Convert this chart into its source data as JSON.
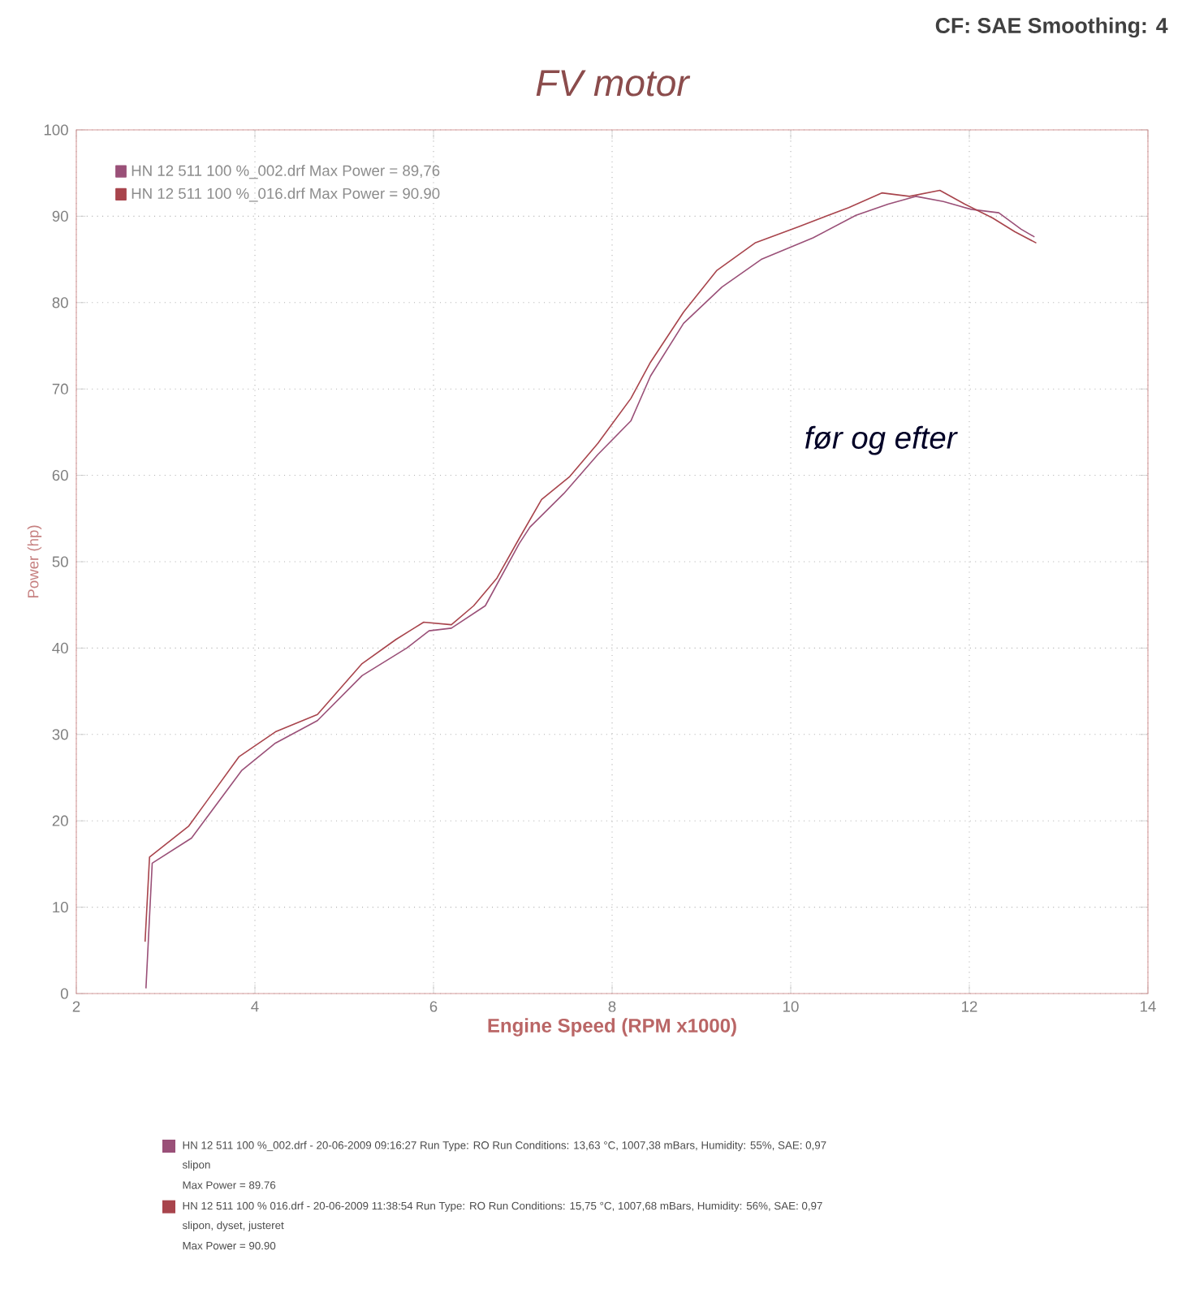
{
  "chart_data": {
    "type": "line",
    "title": "FV motor",
    "xlabel": "Engine Speed (RPM x1000)",
    "ylabel": "Power (hp)",
    "xlim": [
      2,
      14
    ],
    "ylim": [
      0,
      100
    ],
    "xticks": [
      2,
      4,
      6,
      8,
      10,
      12,
      14
    ],
    "yticks": [
      0,
      10,
      20,
      30,
      40,
      50,
      60,
      70,
      80,
      90,
      100
    ],
    "grid": true,
    "legend": "top left",
    "line_style": "solid",
    "marker": "none",
    "series": [
      {
        "name": "HN 12 511 100 %_002.drf Max Power = 89,76",
        "color": "#9a5078",
        "x": [
          2.78,
          2.85,
          3.29,
          3.85,
          4.23,
          4.7,
          5.2,
          5.7,
          5.95,
          6.2,
          6.58,
          6.96,
          7.08,
          7.46,
          7.84,
          8.21,
          8.43,
          8.8,
          9.23,
          9.67,
          10.25,
          10.73,
          11.09,
          11.4,
          11.71,
          12.02,
          12.33,
          12.58,
          12.73
        ],
        "values": [
          0.6,
          15.1,
          18.0,
          25.8,
          29.0,
          31.6,
          36.8,
          40.0,
          42.0,
          42.3,
          44.9,
          52.1,
          54.0,
          57.9,
          62.4,
          66.3,
          71.5,
          77.6,
          81.8,
          85.0,
          87.5,
          90.1,
          91.4,
          92.3,
          91.7,
          90.8,
          90.4,
          88.5,
          87.6
        ]
      },
      {
        "name": "HN 12 511 100 %_016.drf Max Power = 90.90",
        "color": "#a8444c",
        "x": [
          2.77,
          2.82,
          3.26,
          3.82,
          4.23,
          4.7,
          5.2,
          5.58,
          5.89,
          6.2,
          6.45,
          6.71,
          6.96,
          7.21,
          7.52,
          7.84,
          8.21,
          8.43,
          8.8,
          9.17,
          9.6,
          10.09,
          10.65,
          11.02,
          11.33,
          11.67,
          11.95,
          12.26,
          12.51,
          12.75
        ],
        "values": [
          6.0,
          15.8,
          19.4,
          27.4,
          30.3,
          32.3,
          38.2,
          41.0,
          43.0,
          42.7,
          44.9,
          48.1,
          52.7,
          57.2,
          59.8,
          63.7,
          68.9,
          73.1,
          78.9,
          83.7,
          86.9,
          88.8,
          91.0,
          92.7,
          92.3,
          93.0,
          91.4,
          89.8,
          88.2,
          86.9
        ]
      }
    ],
    "annotations": [
      "CF: SAE  Smoothing: 4",
      "før og efter",
      "HN 12 511 100 %_002.drf - 20-06-2009 09:16:27  Run Type: RO  Run Conditions: 13,63 °C, 1007,38 mBars,  Humidity: 55%, SAE: 0,97",
      "slipon",
      "Max Power = 89.76",
      "HN 12 511 100 % 016.drf - 20-06-2009 11:38:54  Run Type: RO  Run Conditions: 15,75 °C, 1007,68 mBars,  Humidity: 56%, SAE: 0,97",
      "slipon, dyset, justeret",
      "Max Power = 90.90"
    ]
  }
}
